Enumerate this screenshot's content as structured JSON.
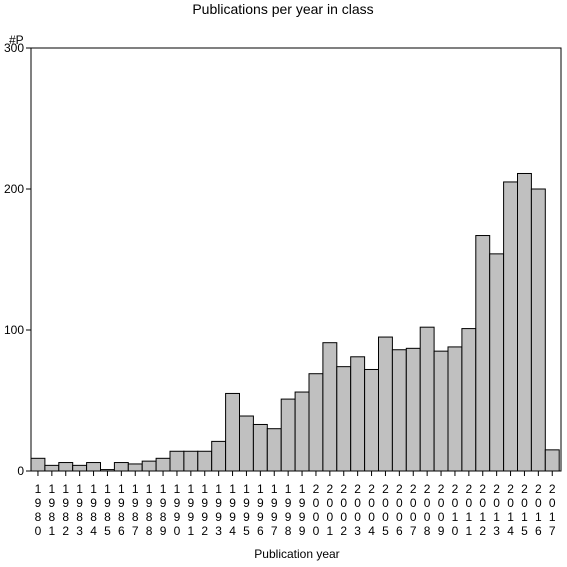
{
  "chart_data": {
    "type": "bar",
    "title": "Publications per year in class",
    "xlabel": "Publication year",
    "ylabel": "#P",
    "ylim": [
      0,
      300
    ],
    "yticks": [
      0,
      100,
      200,
      300
    ],
    "grid": false,
    "bar_color": "#c0c0c0",
    "categories": [
      "1980",
      "1981",
      "1982",
      "1983",
      "1984",
      "1985",
      "1986",
      "1987",
      "1988",
      "1989",
      "1990",
      "1991",
      "1992",
      "1993",
      "1994",
      "1995",
      "1996",
      "1997",
      "1998",
      "1999",
      "2000",
      "2001",
      "2002",
      "2003",
      "2004",
      "2005",
      "2006",
      "2007",
      "2008",
      "2009",
      "2010",
      "2011",
      "2012",
      "2013",
      "2014",
      "2015",
      "2016",
      "2017"
    ],
    "values": [
      9,
      4,
      6,
      4,
      6,
      1,
      6,
      5,
      7,
      9,
      14,
      14,
      14,
      21,
      55,
      39,
      33,
      30,
      51,
      56,
      69,
      91,
      74,
      81,
      72,
      95,
      86,
      87,
      102,
      85,
      88,
      101,
      167,
      154,
      205,
      211,
      200,
      15
    ]
  }
}
